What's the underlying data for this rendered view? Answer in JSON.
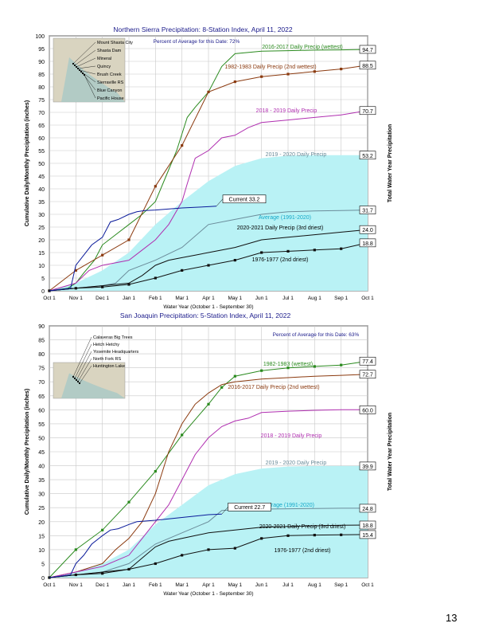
{
  "page_number": "13",
  "chart_data": [
    {
      "type": "line",
      "title": "Northern Sierra Precipitation: 8-Station Index, April 11, 2022",
      "percent_text": "Percent of Average for this Date: 72%",
      "ylabel": "Cumulative Daily/Monthly Precipitation (inches)",
      "ylabel_right": "Total Water Year Precipitation",
      "xlabel": "Water Year (October 1 - September 30)",
      "ylim": [
        0,
        100
      ],
      "y_ticks": [
        "0",
        "5",
        "10",
        "15",
        "20",
        "25",
        "30",
        "35",
        "40",
        "45",
        "50",
        "55",
        "60",
        "65",
        "70",
        "75",
        "80",
        "85",
        "90",
        "95",
        "100"
      ],
      "months": [
        "Oct 1",
        "Nov 1",
        "Dec 1",
        "Jan 1",
        "Feb 1",
        "Mar 1",
        "Apr 1",
        "May 1",
        "Jun 1",
        "Jul 1",
        "Aug 1",
        "Sep 1",
        "Oct 1"
      ],
      "station_labels": [
        "Mount Shasta City",
        "Shasta Dam",
        "Mineral",
        "Quincy",
        "Brush Creek",
        "Sierraville RS",
        "Blue Canyon",
        "Pacific House"
      ],
      "current_label": "Current 33.2",
      "series": [
        {
          "name": "2016-2017 Daily Precip (wettest)",
          "color": "#2a8a1e",
          "total": "94.7",
          "x": [
            0,
            0.7,
            1.0,
            1.3,
            1.7,
            2.0,
            2.5,
            3.0,
            3.5,
            4.0,
            4.4,
            4.8,
            5.2,
            5.5,
            6.0,
            6.5,
            7.0,
            8.0,
            9.0,
            10.0,
            11.0,
            12.0
          ],
          "y": [
            0,
            1,
            3,
            7,
            12,
            18,
            22,
            26,
            30,
            35,
            45,
            55,
            68,
            72,
            78,
            88,
            93,
            94,
            94.2,
            94.4,
            94.5,
            94.7
          ]
        },
        {
          "name": "1982-1983 Daily Precip (2nd wettest)",
          "color": "#8b3a0f",
          "total": "88.5",
          "x": [
            0,
            1,
            2,
            3,
            4,
            5,
            6,
            7,
            8,
            9,
            10,
            11,
            12
          ],
          "y": [
            0,
            8,
            14,
            20,
            41,
            57,
            78,
            82,
            84,
            85,
            86,
            87,
            88.5
          ],
          "markers": true
        },
        {
          "name": "2018 - 2019 Daily Precip",
          "color": "#b02fb0",
          "total": "70.7",
          "x": [
            0,
            1,
            1.5,
            2,
            3,
            3.5,
            4,
            4.5,
            5,
            5.2,
            5.5,
            6,
            6.5,
            7,
            7.5,
            8,
            9,
            10,
            11,
            12
          ],
          "y": [
            0,
            3,
            8,
            10,
            12,
            16,
            20,
            26,
            35,
            42,
            52,
            55,
            60,
            61,
            64,
            66,
            67,
            68,
            69,
            70.7
          ]
        },
        {
          "name": "2019 - 2020 Daily Precip",
          "color": "#6b8c9a",
          "total": "31.7",
          "x": [
            0,
            1,
            2,
            2.5,
            3,
            4,
            5,
            6,
            7,
            8,
            9,
            10,
            11,
            12
          ],
          "y": [
            0,
            1,
            2,
            3,
            8,
            12,
            17,
            26,
            28,
            30,
            31,
            31.3,
            31.5,
            31.7
          ]
        },
        {
          "name": "2020-2021 Daily Precip (3rd driest)",
          "color": "#111111",
          "total": "24.0",
          "x": [
            0,
            1,
            2,
            3,
            3.5,
            4,
            4.5,
            5,
            5.5,
            6,
            7,
            8,
            9,
            10,
            11,
            12
          ],
          "y": [
            0,
            1,
            2,
            3,
            6,
            10,
            12,
            13,
            14,
            15,
            17,
            20,
            21,
            22,
            23,
            24
          ]
        },
        {
          "name": "1976-1977 (2nd driest)",
          "color": "#111111",
          "total": "18.8",
          "x": [
            0,
            1,
            2,
            3,
            4,
            5,
            6,
            7,
            8,
            9,
            10,
            11,
            12
          ],
          "y": [
            0,
            1,
            1.5,
            2.5,
            5,
            8,
            10,
            12,
            15,
            15.5,
            16,
            16.5,
            18.8
          ],
          "markers": true
        },
        {
          "name": "Current",
          "color": "#0a1a9a",
          "x": [
            0,
            0.8,
            1.0,
            1.3,
            1.6,
            2.0,
            2.3,
            2.6,
            3.0,
            3.3,
            3.6,
            4.0,
            5.0,
            6.0,
            6.3
          ],
          "y": [
            0,
            1,
            10,
            14,
            18,
            21,
            27,
            28,
            30,
            31,
            31.5,
            31.7,
            32.5,
            33,
            33.2
          ]
        }
      ],
      "average": {
        "name": "Average (1991-2020)",
        "total": "53.2",
        "x": [
          0,
          1,
          2,
          3,
          4,
          5,
          6,
          7,
          8,
          9,
          10,
          11,
          12
        ],
        "y": [
          0,
          3,
          8,
          15,
          26,
          35,
          43,
          49,
          52,
          53,
          53.2,
          53.2,
          53.2
        ]
      }
    },
    {
      "type": "line",
      "title": "San Joaquin Precipitation: 5-Station Index, April 11, 2022",
      "percent_text": "Percent of Average for this Date: 63%",
      "ylabel": "Cumulative Daily/Monthly Precipitation (inches)",
      "ylabel_right": "Total Water Year Precipitation",
      "xlabel": "Water Year (October 1 - September 30)",
      "ylim": [
        0,
        90
      ],
      "y_ticks": [
        "0",
        "5",
        "10",
        "15",
        "20",
        "25",
        "30",
        "35",
        "40",
        "45",
        "50",
        "55",
        "60",
        "65",
        "70",
        "75",
        "80",
        "85",
        "90"
      ],
      "months": [
        "Oct 1",
        "Nov 1",
        "Dec 1",
        "Jan 1",
        "Feb 1",
        "Mar 1",
        "Apr 1",
        "May 1",
        "Jun 1",
        "Jul 1",
        "Aug 1",
        "Sep 1",
        "Oct 1"
      ],
      "station_labels": [
        "Calaveras Big Trees",
        "Hetch Hetchy",
        "Yosemite Headquarters",
        "North Fork RS",
        "Huntington Lake"
      ],
      "current_label": "Current 22.7",
      "series": [
        {
          "name": "1982-1983 (wettest)",
          "color": "#2a8a1e",
          "total": "77.4",
          "x": [
            0,
            1,
            2,
            3,
            4,
            5,
            6,
            6.5,
            7,
            8,
            9,
            10,
            11,
            12
          ],
          "y": [
            0,
            10,
            17,
            27,
            38,
            51,
            62,
            68,
            72,
            74,
            75,
            75.5,
            76,
            77.4
          ],
          "markers": true
        },
        {
          "name": "2016-2017 Daily Precip (2nd wettest)",
          "color": "#8b3a0f",
          "total": "72.7",
          "x": [
            0,
            1,
            2,
            2.5,
            3,
            3.5,
            4,
            4.5,
            5,
            5.5,
            6,
            6.5,
            7,
            8,
            9,
            10,
            11,
            12
          ],
          "y": [
            0,
            2,
            5,
            10,
            14,
            20,
            30,
            45,
            55,
            62,
            66,
            69,
            70,
            71,
            71.5,
            72,
            72.3,
            72.7
          ]
        },
        {
          "name": "2018 - 2019 Daily Precip",
          "color": "#b02fb0",
          "total": "60.0",
          "x": [
            0,
            1,
            2,
            3,
            3.5,
            4,
            4.5,
            5,
            5.5,
            6,
            6.5,
            7,
            7.5,
            8,
            9,
            10,
            11,
            12
          ],
          "y": [
            0,
            2,
            4,
            8,
            14,
            20,
            26,
            35,
            44,
            50,
            54,
            56,
            57,
            59,
            59.5,
            59.8,
            60,
            60
          ]
        },
        {
          "name": "2019 - 2020 Daily Precip",
          "color": "#6b8c9a",
          "total": "24.8",
          "x": [
            0,
            1,
            2,
            3,
            4,
            5,
            6,
            6.5,
            7,
            8,
            9,
            10,
            11,
            12
          ],
          "y": [
            0,
            1,
            2,
            5,
            12,
            16,
            20,
            24,
            24.3,
            24.5,
            24.6,
            24.7,
            24.8,
            24.8
          ]
        },
        {
          "name": "2020-2021 Daily Precip (3rd driest)",
          "color": "#111111",
          "total": "18.8",
          "x": [
            0,
            1,
            2,
            3,
            3.5,
            4,
            4.5,
            5,
            5.5,
            6,
            7,
            8,
            9,
            10,
            11,
            12
          ],
          "y": [
            0,
            1,
            2,
            3,
            7,
            11,
            13,
            14,
            15,
            16,
            17,
            18,
            18.3,
            18.5,
            18.7,
            18.8
          ]
        },
        {
          "name": "1976-1977 (2nd driest)",
          "color": "#111111",
          "total": "15.4",
          "x": [
            0,
            1,
            2,
            3,
            4,
            5,
            6,
            7,
            8,
            9,
            10,
            11,
            12
          ],
          "y": [
            0,
            1,
            1.5,
            3,
            5,
            8,
            10,
            10.5,
            14,
            15,
            15.2,
            15.3,
            15.4
          ],
          "markers": true
        },
        {
          "name": "Current",
          "color": "#0a1a9a",
          "x": [
            0,
            0.8,
            1.0,
            1.3,
            1.6,
            2.0,
            2.3,
            2.6,
            3.0,
            3.3,
            4.0,
            5.0,
            6.0,
            6.5
          ],
          "y": [
            0,
            1,
            5,
            8,
            12,
            15,
            17,
            17.5,
            19,
            20,
            20.5,
            21.5,
            22.5,
            22.7
          ]
        }
      ],
      "average": {
        "name": "Average (1991-2020)",
        "total": "39.9",
        "x": [
          0,
          1,
          2,
          3,
          4,
          5,
          6,
          7,
          8,
          9,
          10,
          11,
          12
        ],
        "y": [
          0,
          2,
          5,
          10,
          19,
          26,
          33,
          37,
          39,
          39.7,
          39.9,
          39.9,
          39.9
        ]
      }
    }
  ]
}
